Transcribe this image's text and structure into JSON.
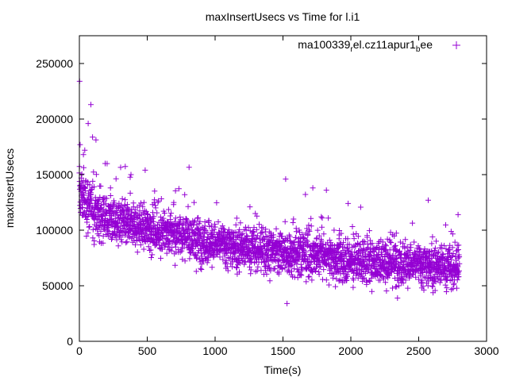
{
  "chart_data": {
    "type": "scatter",
    "title": "maxInsertUsecs vs Time for l.i1",
    "xlabel": "Time(s)",
    "ylabel": "maxInsertUsecs",
    "xlim": [
      0,
      3000
    ],
    "ylim": [
      0,
      275000
    ],
    "x_ticks": [
      "0",
      "500",
      "1000",
      "1500",
      "2000",
      "2500",
      "3000"
    ],
    "y_ticks": [
      "0",
      "50000",
      "100000",
      "150000",
      "200000",
      "250000"
    ],
    "grid": false,
    "marker": "+",
    "legend_position": "top-right",
    "series": [
      {
        "name": "ma100339_rel.cz11apur1_bee",
        "name_parts": {
          "a": "ma100339",
          "b": "r",
          "c": "el.cz11apur1",
          "d": "b",
          "e": "ee"
        },
        "color": "#9400d3",
        "trend": [
          {
            "x": 0,
            "y": 135000
          },
          {
            "x": 100,
            "y": 118000
          },
          {
            "x": 200,
            "y": 110000
          },
          {
            "x": 400,
            "y": 104000
          },
          {
            "x": 600,
            "y": 99000
          },
          {
            "x": 800,
            "y": 94000
          },
          {
            "x": 1000,
            "y": 88000
          },
          {
            "x": 1200,
            "y": 84000
          },
          {
            "x": 1500,
            "y": 80000
          },
          {
            "x": 1800,
            "y": 76000
          },
          {
            "x": 2000,
            "y": 73000
          },
          {
            "x": 2300,
            "y": 71000
          },
          {
            "x": 2600,
            "y": 68000
          },
          {
            "x": 2800,
            "y": 66000
          }
        ],
        "notable_points": [
          {
            "x": 2,
            "y": 234000
          },
          {
            "x": 85,
            "y": 213000
          },
          {
            "x": 65,
            "y": 196000
          },
          {
            "x": 5,
            "y": 177000
          },
          {
            "x": 40,
            "y": 172000
          },
          {
            "x": 30,
            "y": 168000
          },
          {
            "x": 190,
            "y": 160000
          },
          {
            "x": 485,
            "y": 154000
          },
          {
            "x": 380,
            "y": 150000
          },
          {
            "x": 1520,
            "y": 146000
          },
          {
            "x": 1720,
            "y": 138000
          },
          {
            "x": 2570,
            "y": 127000
          },
          {
            "x": 1980,
            "y": 124000
          },
          {
            "x": 2790,
            "y": 114000
          },
          {
            "x": 1530,
            "y": 34000
          },
          {
            "x": 1920,
            "y": 55000
          },
          {
            "x": 2760,
            "y": 52000
          },
          {
            "x": 2790,
            "y": 58000
          }
        ],
        "x_range": [
          0,
          2800
        ],
        "y_typical_spread": 14000,
        "approx_points": 2800
      }
    ]
  }
}
